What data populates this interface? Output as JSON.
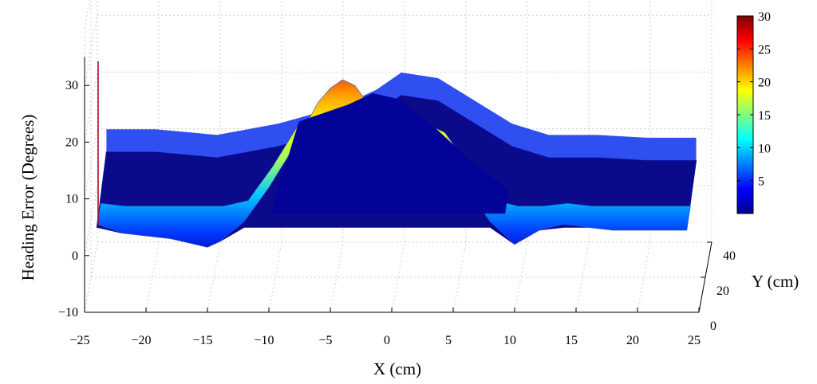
{
  "chart_data": {
    "type": "surface",
    "xlabel": "X (cm)",
    "ylabel": "Y (cm)",
    "zlabel": "Heading Error (Degrees)",
    "x_ticks": [
      "−25",
      "−20",
      "−15",
      "−10",
      "−5",
      "0",
      "5",
      "10",
      "15",
      "20",
      "25"
    ],
    "x_tick_values": [
      -25,
      -20,
      -15,
      -10,
      -5,
      0,
      5,
      10,
      15,
      20,
      25
    ],
    "y_ticks": [
      "0",
      "20",
      "40"
    ],
    "y_tick_values": [
      0,
      20,
      40
    ],
    "z_ticks": [
      "−10",
      "0",
      "10",
      "20",
      "30"
    ],
    "z_tick_values": [
      -10,
      0,
      10,
      20,
      30
    ],
    "xlim": [
      -25,
      25
    ],
    "ylim": [
      0,
      40
    ],
    "zlim": [
      -10,
      30
    ],
    "grid": true,
    "colormap": "jet",
    "colorbar": {
      "range": [
        0,
        30
      ],
      "ticks": [
        "5",
        "10",
        "15",
        "20",
        "25",
        "30"
      ],
      "tick_values": [
        5,
        10,
        15,
        20,
        25,
        30
      ]
    },
    "front_profile": {
      "x": [
        -24,
        -22,
        -20,
        -18,
        -16,
        -15,
        -14,
        -12,
        -10,
        -8,
        -6,
        -5,
        -4,
        -3,
        -2,
        0,
        2,
        4,
        6,
        8,
        10,
        12,
        14,
        16,
        18,
        20,
        22,
        24
      ],
      "z": [
        5.5,
        4,
        3.5,
        3,
        2,
        1.5,
        2.5,
        6,
        12,
        19,
        27,
        29.5,
        31,
        30,
        27,
        22,
        20,
        18,
        12,
        6,
        2,
        4.5,
        5.5,
        5,
        4.5,
        4.5,
        4.5,
        4.5
      ]
    },
    "back_profile": {
      "x": [
        -24,
        -20,
        -15,
        -10,
        -5,
        -2,
        0,
        3,
        6,
        9,
        12,
        16,
        20,
        24
      ],
      "z": [
        9,
        9,
        8,
        10,
        13,
        16,
        19,
        18,
        14,
        10,
        8,
        8,
        7.5,
        7.5
      ]
    },
    "interior_level_z": 5
  }
}
